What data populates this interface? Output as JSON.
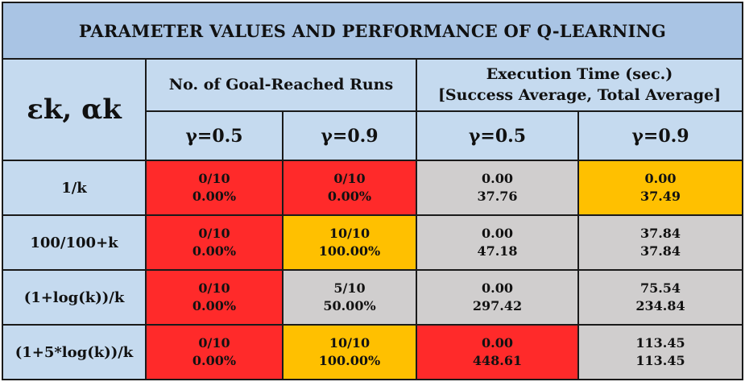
{
  "title": "PARAMETER VALUES AND PERFORMANCE OF Q-LEARNING",
  "header": {
    "symbol_main": "εk, αk",
    "goal_runs_label": "No. of Goal-Reached Runs",
    "exec_time_label_line1": "Execution Time (sec.)",
    "exec_time_label_line2": "[Success Average, Total Average]",
    "gamma_labels": [
      "γ=0.5",
      "γ=0.9",
      "γ=0.5",
      "γ=0.9"
    ]
  },
  "colors": {
    "title_bg": "#a9c4e4",
    "header_bg": "#c5daef",
    "red": "#ff2a2a",
    "orange": "#ffc000",
    "gray": "#d0cece"
  },
  "rows": [
    {
      "label": "1/k",
      "cells": [
        {
          "line1": "0/10",
          "line2": "0.00%",
          "color": "red"
        },
        {
          "line1": "0/10",
          "line2": "0.00%",
          "color": "red"
        },
        {
          "line1": "0.00",
          "line2": "37.76",
          "color": "gray"
        },
        {
          "line1": "0.00",
          "line2": "37.49",
          "color": "orange"
        }
      ]
    },
    {
      "label": "100/100+k",
      "cells": [
        {
          "line1": "0/10",
          "line2": "0.00%",
          "color": "red"
        },
        {
          "line1": "10/10",
          "line2": "100.00%",
          "color": "orange"
        },
        {
          "line1": "0.00",
          "line2": "47.18",
          "color": "gray"
        },
        {
          "line1": "37.84",
          "line2": "37.84",
          "color": "gray"
        }
      ]
    },
    {
      "label": "(1+log(k))/k",
      "cells": [
        {
          "line1": "0/10",
          "line2": "0.00%",
          "color": "red"
        },
        {
          "line1": "5/10",
          "line2": "50.00%",
          "color": "gray"
        },
        {
          "line1": "0.00",
          "line2": "297.42",
          "color": "gray"
        },
        {
          "line1": "75.54",
          "line2": "234.84",
          "color": "gray"
        }
      ]
    },
    {
      "label": "(1+5*log(k))/k",
      "cells": [
        {
          "line1": "0/10",
          "line2": "0.00%",
          "color": "red"
        },
        {
          "line1": "10/10",
          "line2": "100.00%",
          "color": "orange"
        },
        {
          "line1": "0.00",
          "line2": "448.61",
          "color": "red"
        },
        {
          "line1": "113.45",
          "line2": "113.45",
          "color": "gray"
        }
      ]
    }
  ]
}
